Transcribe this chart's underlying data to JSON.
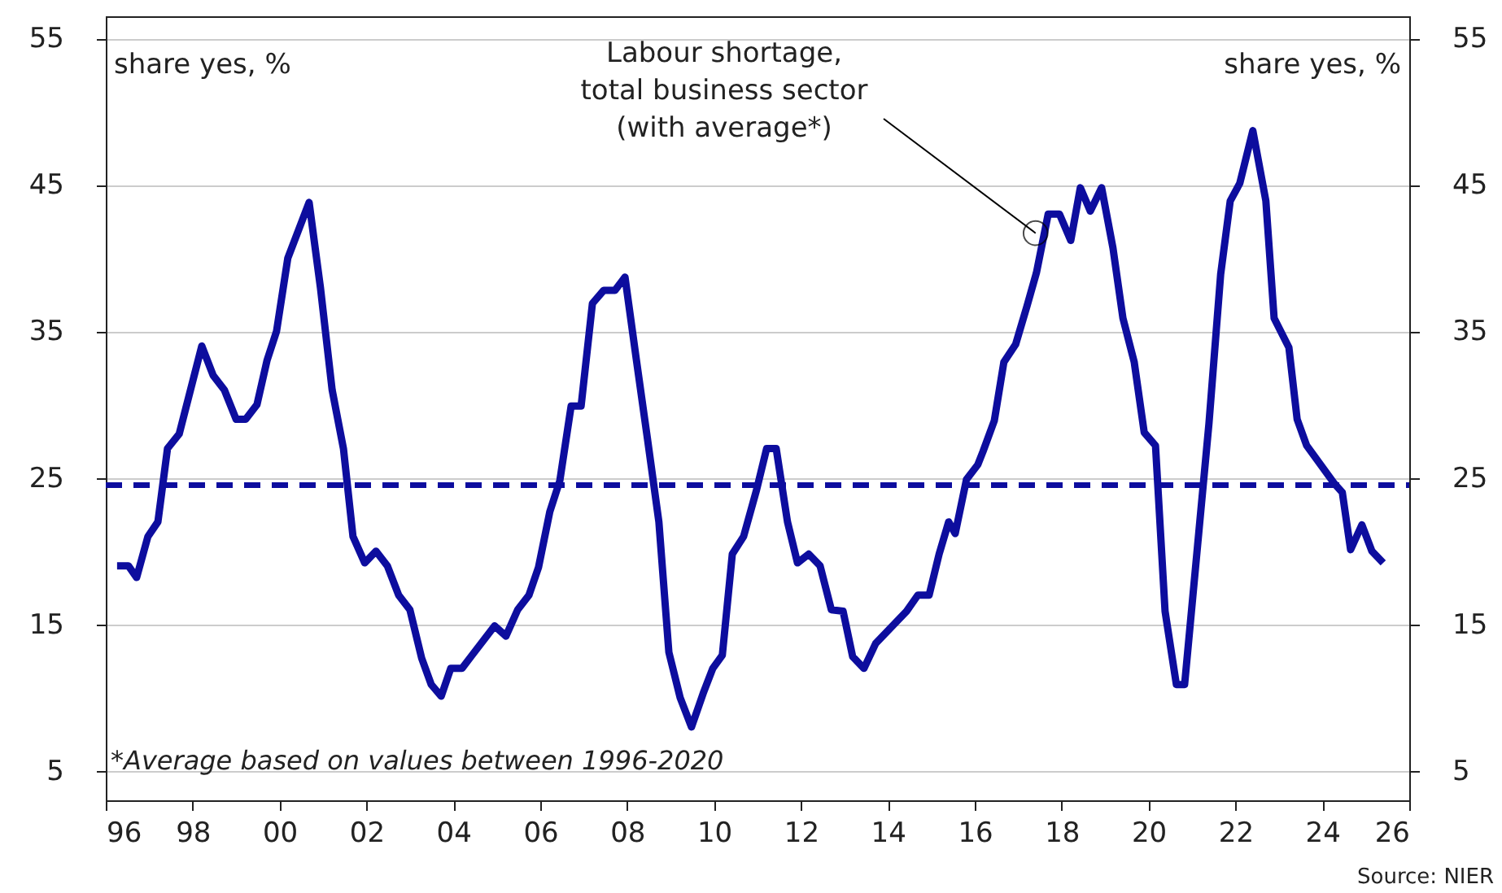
{
  "chart_data": {
    "type": "line",
    "ylabel": "share yes, %",
    "y2label": "share yes, %",
    "x": [
      1996.26,
      1996.52,
      1996.71,
      1996.97,
      1997.2,
      1997.42,
      1997.69,
      1998.21,
      1998.47,
      1998.73,
      1999.0,
      1999.22,
      1999.48,
      1999.71,
      1999.93,
      2000.19,
      2000.68,
      2000.94,
      2001.21,
      2001.47,
      2001.69,
      2001.96,
      2002.22,
      2002.48,
      2002.74,
      2003.0,
      2003.27,
      2003.49,
      2003.72,
      2003.94,
      2004.2,
      2004.43,
      2004.95,
      2005.21,
      2005.48,
      2005.74,
      2005.96,
      2006.22,
      2006.45,
      2006.71,
      2006.94,
      2007.2,
      2007.46,
      2007.72,
      2007.95,
      2008.21,
      2008.47,
      2008.73,
      2008.96,
      2009.22,
      2009.48,
      2009.75,
      2009.97,
      2010.19,
      2010.42,
      2010.68,
      2010.98,
      2011.21,
      2011.43,
      2011.69,
      2011.92,
      2012.18,
      2012.44,
      2012.7,
      2012.97,
      2013.19,
      2013.45,
      2013.72,
      2014.43,
      2014.69,
      2014.95,
      2015.18,
      2015.4,
      2015.55,
      2015.81,
      2016.07,
      2016.19,
      2016.45,
      2016.67,
      2016.94,
      2017.2,
      2017.42,
      2017.69,
      2017.95,
      2018.21,
      2018.43,
      2018.66,
      2018.92,
      2019.18,
      2019.41,
      2019.67,
      2019.9,
      2020.16,
      2020.38,
      2020.64,
      2020.83,
      2021.39,
      2021.66,
      2021.88,
      2022.1,
      2022.4,
      2022.7,
      2022.89,
      2023.23,
      2023.42,
      2023.64,
      2024.28,
      2024.46,
      2024.65,
      2024.91,
      2025.14,
      2025.4
    ],
    "series": [
      {
        "color": "#0d0d9e",
        "values": [
          19,
          19,
          18.2,
          21,
          22,
          27,
          28,
          34,
          32,
          31,
          29,
          29,
          30,
          33,
          35,
          40,
          43.8,
          38,
          31,
          27,
          21,
          19.2,
          20,
          19,
          17,
          16,
          12.7,
          10.9,
          10.1,
          12,
          12,
          12.9,
          14.9,
          14.2,
          16,
          17,
          18.9,
          22.7,
          24.8,
          29.9,
          29.9,
          36.9,
          37.8,
          37.8,
          38.7,
          33.1,
          27.6,
          22,
          13.1,
          10,
          8,
          10.3,
          12,
          12.9,
          19.8,
          21,
          24.2,
          27,
          27,
          22,
          19.2,
          19.8,
          19,
          16,
          15.9,
          12.8,
          12,
          13.7,
          15.9,
          17,
          17,
          19.8,
          22,
          21.2,
          24.9,
          25.9,
          26.8,
          28.9,
          32.9,
          34.1,
          36.7,
          39,
          43,
          43,
          41.2,
          44.8,
          43.2,
          44.8,
          40.7,
          35.9,
          32.9,
          28.1,
          27.2,
          15.9,
          10.9,
          10.9,
          28.7,
          38.9,
          43.9,
          45.1,
          48.7,
          43.9,
          35.9,
          33.9,
          29,
          27.2,
          24.6,
          24,
          20.1,
          21.8,
          20,
          19.2
        ]
      }
    ],
    "xlim": [
      1996,
      2026
    ],
    "xticks": [
      {
        "value": 1996,
        "label": "96"
      },
      {
        "value": 1998,
        "label": "98"
      },
      {
        "value": 2000,
        "label": "00"
      },
      {
        "value": 2002,
        "label": "02"
      },
      {
        "value": 2004,
        "label": "04"
      },
      {
        "value": 2006,
        "label": "06"
      },
      {
        "value": 2008,
        "label": "08"
      },
      {
        "value": 2010,
        "label": "10"
      },
      {
        "value": 2012,
        "label": "12"
      },
      {
        "value": 2014,
        "label": "14"
      },
      {
        "value": 2016,
        "label": "16"
      },
      {
        "value": 2018,
        "label": "18"
      },
      {
        "value": 2020,
        "label": "20"
      },
      {
        "value": 2022,
        "label": "22"
      },
      {
        "value": 2024,
        "label": "24"
      },
      {
        "value": 2026,
        "label": "26"
      }
    ],
    "ylim": [
      3,
      56.5
    ],
    "yticks": [
      5,
      15,
      25,
      35,
      45,
      55
    ],
    "y2lim": [
      3,
      56.5
    ],
    "y2ticks": [
      5,
      15,
      25,
      35,
      45,
      55
    ],
    "ref_lines": [
      {
        "axis": "y",
        "value": 24.5,
        "color": "#0d0d9e",
        "line_style": "dashed"
      }
    ],
    "annotations": [
      {
        "text": "Labour shortage,\ntotal business sector\n(with average*)",
        "x": 2017.4,
        "y": 41.7
      },
      "*Average based on values between 1996-2020",
      "Source: NIER"
    ],
    "grid": "y",
    "line_style": "solid",
    "marker": "none"
  }
}
